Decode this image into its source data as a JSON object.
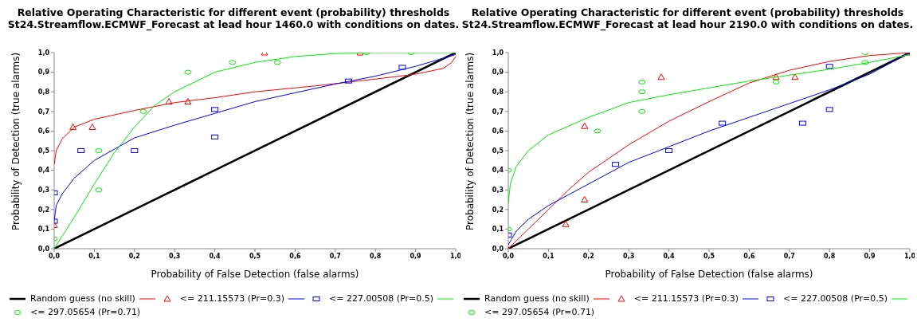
{
  "chart_data": [
    {
      "type": "scatter",
      "title": "Relative Operating Characteristic for different event (probability) thresholds",
      "subtitle": "St24.Streamflow.ECMWF_Forecast at lead hour 1460.0 with conditions on dates.",
      "xlabel": "Probability of False Detection (false alarms)",
      "ylabel": "Probability of Detection (true alarms)",
      "xlim": [
        0,
        1
      ],
      "ylim": [
        0,
        1
      ],
      "xticks": [
        {
          "value": 0,
          "label": "0,0"
        },
        {
          "value": 0.1,
          "label": "0,1"
        },
        {
          "value": 0.2,
          "label": "0,2"
        },
        {
          "value": 0.3,
          "label": "0,3"
        },
        {
          "value": 0.4,
          "label": "0,4"
        },
        {
          "value": 0.5,
          "label": "0,5"
        },
        {
          "value": 0.6,
          "label": "0,6"
        },
        {
          "value": 0.7,
          "label": "0,7"
        },
        {
          "value": 0.8,
          "label": "0,8"
        },
        {
          "value": 0.9,
          "label": "0,9"
        },
        {
          "value": 1,
          "label": "1,0"
        }
      ],
      "yticks": [
        {
          "value": 0,
          "label": "0,0"
        },
        {
          "value": 0.1,
          "label": "0,1"
        },
        {
          "value": 0.2,
          "label": "0,2"
        },
        {
          "value": 0.3,
          "label": "0,3"
        },
        {
          "value": 0.4,
          "label": "0,4"
        },
        {
          "value": 0.5,
          "label": "0,5"
        },
        {
          "value": 0.6,
          "label": "0,6"
        },
        {
          "value": 0.7,
          "label": "0,7"
        },
        {
          "value": 0.8,
          "label": "0,8"
        },
        {
          "value": 0.9,
          "label": "0,9"
        },
        {
          "value": 1,
          "label": "1,0"
        }
      ],
      "grid": false,
      "legend": "bottom",
      "series": [
        {
          "name": "Random guess (no skill)",
          "type": "line",
          "color": "#000000",
          "x": [
            0,
            1
          ],
          "values": [
            0,
            1
          ]
        },
        {
          "type": "line",
          "color": "#ff0000",
          "x": [
            0,
            0.005,
            0.02,
            0.05,
            0.1,
            0.2,
            0.3,
            0.4,
            0.5,
            0.6,
            0.65,
            0.8,
            0.9,
            0.97,
            0.99,
            1
          ],
          "values": [
            0.43,
            0.5,
            0.56,
            0.62,
            0.66,
            0.705,
            0.745,
            0.77,
            0.8,
            0.82,
            0.83,
            0.865,
            0.89,
            0.92,
            0.95,
            0.98
          ]
        },
        {
          "name": "<= 211.15573 (Pr=0.3)",
          "type": "scatter",
          "marker": "triangle",
          "color": "#ff0000",
          "x": [
            0,
            0.047,
            0.095,
            0.286,
            0.333,
            0.524,
            0.762
          ],
          "values": [
            0.12,
            0.62,
            0.62,
            0.75,
            0.75,
            1,
            1
          ]
        },
        {
          "type": "line",
          "color": "#0000ff",
          "x": [
            0,
            0.005,
            0.02,
            0.05,
            0.1,
            0.2,
            0.3,
            0.4,
            0.5,
            0.6,
            0.7,
            0.8,
            0.9,
            1
          ],
          "values": [
            0.14,
            0.22,
            0.28,
            0.36,
            0.45,
            0.565,
            0.63,
            0.69,
            0.75,
            0.795,
            0.84,
            0.88,
            0.93,
            0.99
          ]
        },
        {
          "name": "<= 227.00508 (Pr=0.5)",
          "type": "scatter",
          "marker": "square",
          "color": "#0000ff",
          "x": [
            0,
            0,
            0.067,
            0.2,
            0.4,
            0.4,
            0.733,
            0.867
          ],
          "values": [
            0.14,
            0.285,
            0.5,
            0.5,
            0.71,
            0.57,
            0.855,
            0.925
          ]
        },
        {
          "type": "line",
          "color": "#00ee00",
          "x": [
            0,
            0.05,
            0.1,
            0.15,
            0.2,
            0.25,
            0.3,
            0.4,
            0.5,
            0.6,
            0.7,
            0.8,
            1
          ],
          "values": [
            0,
            0.16,
            0.33,
            0.49,
            0.62,
            0.73,
            0.8,
            0.9,
            0.95,
            0.98,
            0.995,
            1,
            1
          ]
        },
        {
          "name": "<= 297.05654 (Pr=0.71)",
          "type": "scatter",
          "marker": "circle",
          "color": "#00ee00",
          "x": [
            0,
            0.111,
            0.111,
            0.222,
            0.333,
            0.444,
            0.556,
            0.778,
            0.889
          ],
          "values": [
            0.05,
            0.5,
            0.3,
            0.7,
            0.9,
            0.95,
            0.95,
            1,
            1
          ]
        }
      ]
    },
    {
      "type": "scatter",
      "title": "Relative Operating Characteristic for different event (probability) thresholds",
      "subtitle": "St24.Streamflow.ECMWF_Forecast at lead hour 2190.0 with conditions on dates.",
      "xlabel": "Probability of False Detection (false alarms)",
      "ylabel": "Probability of Detection (true alarms)",
      "xlim": [
        0,
        1
      ],
      "ylim": [
        0,
        1
      ],
      "xticks": [
        {
          "value": 0,
          "label": "0,0"
        },
        {
          "value": 0.1,
          "label": "0,1"
        },
        {
          "value": 0.2,
          "label": "0,2"
        },
        {
          "value": 0.3,
          "label": "0,3"
        },
        {
          "value": 0.4,
          "label": "0,4"
        },
        {
          "value": 0.5,
          "label": "0,5"
        },
        {
          "value": 0.6,
          "label": "0,6"
        },
        {
          "value": 0.7,
          "label": "0,7"
        },
        {
          "value": 0.8,
          "label": "0,8"
        },
        {
          "value": 0.9,
          "label": "0,9"
        },
        {
          "value": 1,
          "label": "1,0"
        }
      ],
      "yticks": [
        {
          "value": 0,
          "label": "0,0"
        },
        {
          "value": 0.1,
          "label": "0,1"
        },
        {
          "value": 0.2,
          "label": "0,2"
        },
        {
          "value": 0.3,
          "label": "0,3"
        },
        {
          "value": 0.4,
          "label": "0,4"
        },
        {
          "value": 0.5,
          "label": "0,5"
        },
        {
          "value": 0.6,
          "label": "0,6"
        },
        {
          "value": 0.7,
          "label": "0,7"
        },
        {
          "value": 0.8,
          "label": "0,8"
        },
        {
          "value": 0.9,
          "label": "0,9"
        },
        {
          "value": 1,
          "label": "1,0"
        }
      ],
      "grid": false,
      "legend": "bottom",
      "series": [
        {
          "name": "Random guess (no skill)",
          "type": "line",
          "color": "#000000",
          "x": [
            0,
            1
          ],
          "values": [
            0,
            1
          ]
        },
        {
          "type": "line",
          "color": "#ff0000",
          "x": [
            0,
            0.05,
            0.1,
            0.15,
            0.2,
            0.3,
            0.4,
            0.5,
            0.6,
            0.7,
            0.8,
            0.9,
            1
          ],
          "values": [
            0,
            0.1,
            0.2,
            0.3,
            0.39,
            0.53,
            0.65,
            0.75,
            0.845,
            0.91,
            0.955,
            0.985,
            1
          ]
        },
        {
          "name": "<= 211.15573 (Pr=0.3)",
          "type": "scatter",
          "marker": "triangle",
          "color": "#ff0000",
          "x": [
            0.143,
            0.19,
            0.19,
            0.381,
            0.667,
            0.714,
            1
          ],
          "values": [
            0.125,
            0.25,
            0.625,
            0.875,
            0.875,
            0.875,
            1
          ]
        },
        {
          "type": "line",
          "color": "#0000ff",
          "x": [
            0,
            0.02,
            0.05,
            0.1,
            0.2,
            0.3,
            0.4,
            0.5,
            0.6,
            0.7,
            0.8,
            0.9,
            1
          ],
          "values": [
            0.02,
            0.09,
            0.15,
            0.22,
            0.33,
            0.44,
            0.52,
            0.6,
            0.67,
            0.74,
            0.81,
            0.89,
            1
          ]
        },
        {
          "name": "<= 227.00508 (Pr=0.5)",
          "type": "scatter",
          "marker": "square",
          "color": "#0000ff",
          "x": [
            0,
            0.267,
            0.4,
            0.533,
            0.733,
            0.8,
            0.8
          ],
          "values": [
            0.07,
            0.43,
            0.5,
            0.64,
            0.64,
            0.71,
            0.93
          ]
        },
        {
          "type": "line",
          "color": "#00ee00",
          "x": [
            0,
            0.005,
            0.02,
            0.05,
            0.1,
            0.2,
            0.3,
            0.4,
            0.5,
            0.6,
            0.7,
            0.8,
            0.9,
            1
          ],
          "values": [
            0.23,
            0.33,
            0.42,
            0.5,
            0.58,
            0.67,
            0.745,
            0.785,
            0.82,
            0.855,
            0.885,
            0.915,
            0.95,
            0.99
          ]
        },
        {
          "name": "<= 297.05654 (Pr=0.71)",
          "type": "scatter",
          "marker": "circle",
          "color": "#00ee00",
          "x": [
            0,
            0,
            0.222,
            0.333,
            0.333,
            0.333,
            0.667,
            0.889,
            0.889
          ],
          "values": [
            0.1,
            0.4,
            0.6,
            0.7,
            0.8,
            0.85,
            0.85,
            0.95,
            1
          ]
        }
      ]
    }
  ]
}
